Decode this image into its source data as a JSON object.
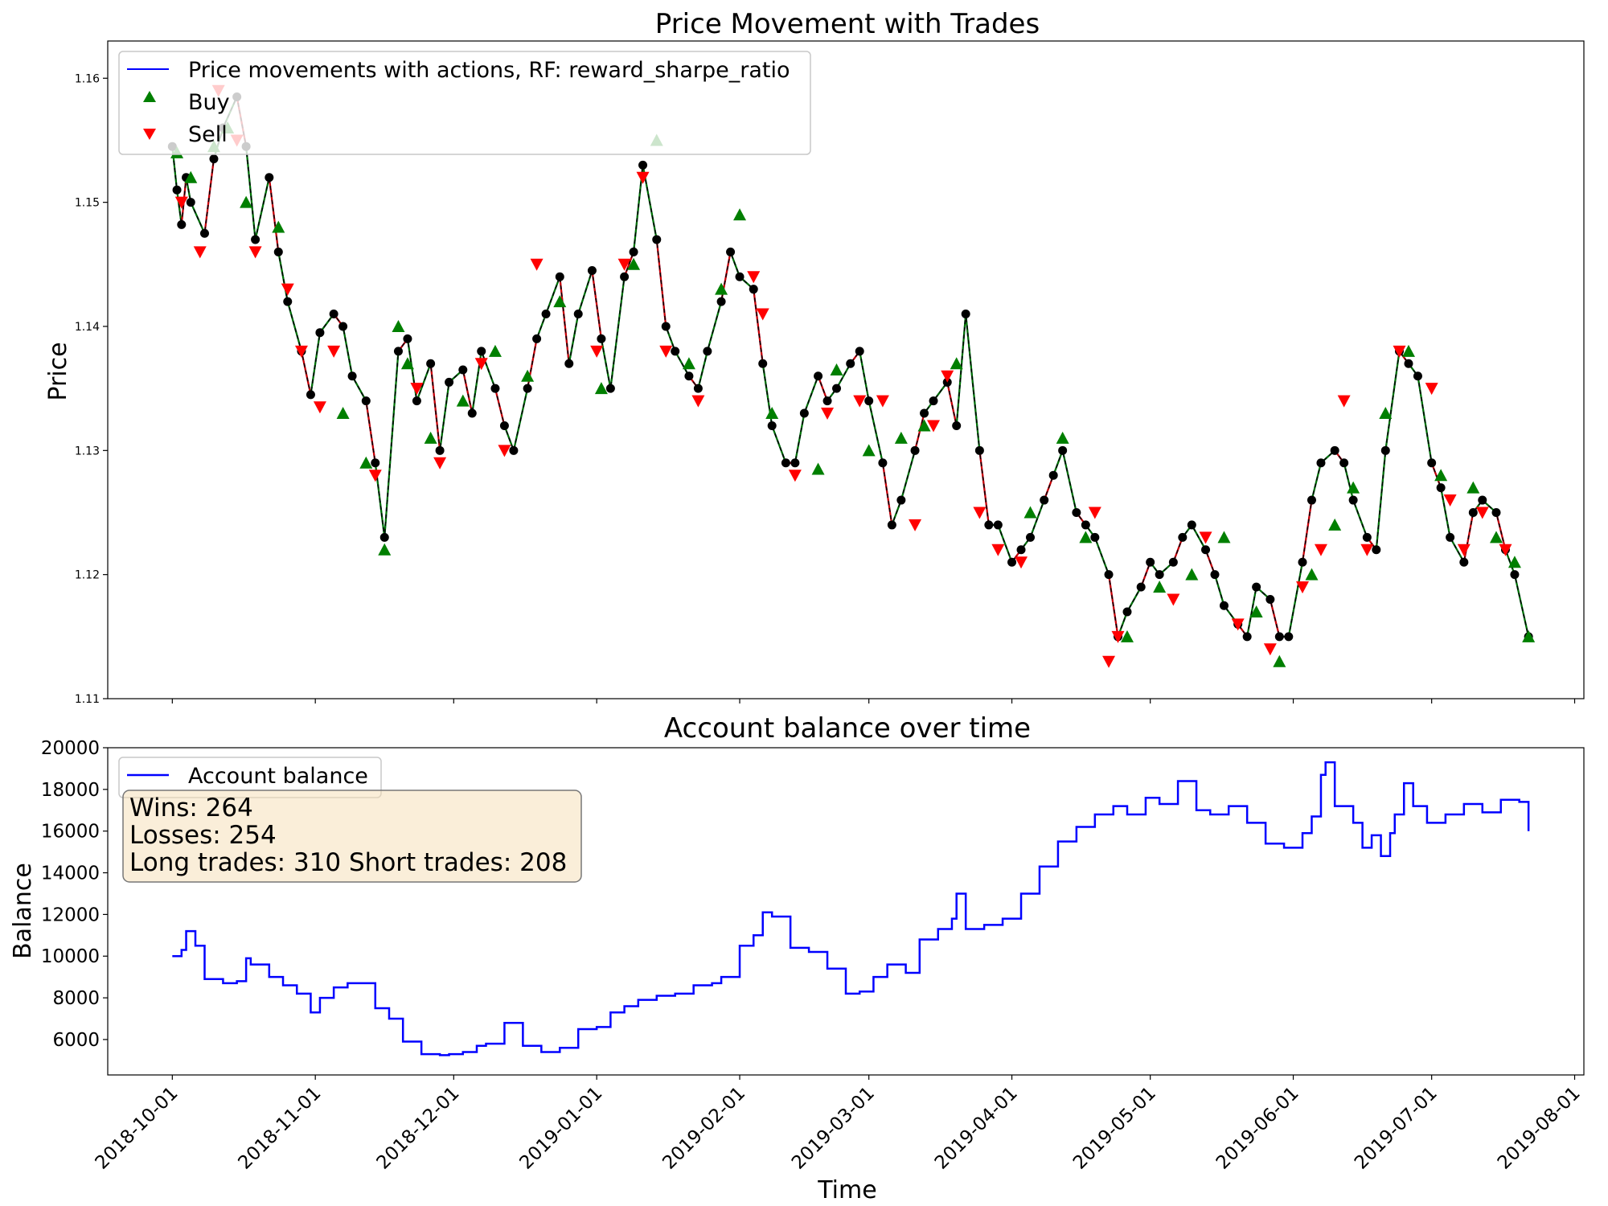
{
  "chart_data": [
    {
      "type": "line",
      "title": "Price Movement with Trades",
      "ylabel": "Price",
      "xlabel": "",
      "ylim": [
        1.11,
        1.163
      ],
      "xlim": [
        "2018-09-17",
        "2019-08-03"
      ],
      "yticks": [
        1.11,
        1.12,
        1.13,
        1.14,
        1.15,
        1.16
      ],
      "ytick_labels": [
        "1.11",
        "1.12",
        "1.13",
        "1.14",
        "1.15",
        "1.16"
      ],
      "legend": {
        "placement": "top-left",
        "entries": [
          "Price movements with actions, RF: reward_sharpe_ratio",
          "Buy",
          "Sell"
        ]
      },
      "colors": {
        "price": "#0000ff",
        "long_segment": "#007400",
        "short_segment": "#cc0000",
        "buy": "#007f00",
        "sell": "#ff0000",
        "close": "#000000"
      },
      "series": [
        {
          "name": "Price movements with actions, RF: reward_sharpe_ratio",
          "x": [
            "2018-10-01",
            "2018-10-02",
            "2018-10-03",
            "2018-10-04",
            "2018-10-05",
            "2018-10-08",
            "2018-10-10",
            "2018-10-12",
            "2018-10-15",
            "2018-10-17",
            "2018-10-19",
            "2018-10-22",
            "2018-10-24",
            "2018-10-26",
            "2018-10-29",
            "2018-10-31",
            "2018-11-02",
            "2018-11-05",
            "2018-11-07",
            "2018-11-09",
            "2018-11-12",
            "2018-11-14",
            "2018-11-16",
            "2018-11-19",
            "2018-11-21",
            "2018-11-23",
            "2018-11-26",
            "2018-11-28",
            "2018-11-30",
            "2018-12-03",
            "2018-12-05",
            "2018-12-07",
            "2018-12-10",
            "2018-12-12",
            "2018-12-14",
            "2018-12-17",
            "2018-12-19",
            "2018-12-21",
            "2018-12-24",
            "2018-12-26",
            "2018-12-28",
            "2018-12-31",
            "2019-01-02",
            "2019-01-04",
            "2019-01-07",
            "2019-01-09",
            "2019-01-11",
            "2019-01-14",
            "2019-01-16",
            "2019-01-18",
            "2019-01-21",
            "2019-01-23",
            "2019-01-25",
            "2019-01-28",
            "2019-01-30",
            "2019-02-01",
            "2019-02-04",
            "2019-02-06",
            "2019-02-08",
            "2019-02-11",
            "2019-02-13",
            "2019-02-15",
            "2019-02-18",
            "2019-02-20",
            "2019-02-22",
            "2019-02-25",
            "2019-02-27",
            "2019-03-01",
            "2019-03-04",
            "2019-03-06",
            "2019-03-08",
            "2019-03-11",
            "2019-03-13",
            "2019-03-15",
            "2019-03-18",
            "2019-03-20",
            "2019-03-22",
            "2019-03-25",
            "2019-03-27",
            "2019-03-29",
            "2019-04-01",
            "2019-04-03",
            "2019-04-05",
            "2019-04-08",
            "2019-04-10",
            "2019-04-12",
            "2019-04-15",
            "2019-04-17",
            "2019-04-19",
            "2019-04-22",
            "2019-04-24",
            "2019-04-26",
            "2019-04-29",
            "2019-05-01",
            "2019-05-03",
            "2019-05-06",
            "2019-05-08",
            "2019-05-10",
            "2019-05-13",
            "2019-05-15",
            "2019-05-17",
            "2019-05-20",
            "2019-05-22",
            "2019-05-24",
            "2019-05-27",
            "2019-05-29",
            "2019-05-31",
            "2019-06-03",
            "2019-06-05",
            "2019-06-07",
            "2019-06-10",
            "2019-06-12",
            "2019-06-14",
            "2019-06-17",
            "2019-06-19",
            "2019-06-21",
            "2019-06-24",
            "2019-06-26",
            "2019-06-28",
            "2019-07-01",
            "2019-07-03",
            "2019-07-05",
            "2019-07-08",
            "2019-07-10",
            "2019-07-12",
            "2019-07-15",
            "2019-07-17",
            "2019-07-19",
            "2019-07-22"
          ],
          "y": [
            1.1545,
            1.151,
            1.1482,
            1.152,
            1.15,
            1.1475,
            1.1535,
            1.156,
            1.1585,
            1.1545,
            1.147,
            1.152,
            1.146,
            1.142,
            1.138,
            1.1345,
            1.1395,
            1.141,
            1.14,
            1.136,
            1.134,
            1.129,
            1.123,
            1.138,
            1.139,
            1.134,
            1.137,
            1.13,
            1.1355,
            1.1365,
            1.133,
            1.138,
            1.135,
            1.132,
            1.13,
            1.135,
            1.139,
            1.141,
            1.144,
            1.137,
            1.141,
            1.1445,
            1.139,
            1.135,
            1.144,
            1.146,
            1.153,
            1.147,
            1.14,
            1.138,
            1.136,
            1.135,
            1.138,
            1.142,
            1.146,
            1.144,
            1.143,
            1.137,
            1.132,
            1.129,
            1.129,
            1.133,
            1.136,
            1.134,
            1.135,
            1.137,
            1.138,
            1.134,
            1.129,
            1.124,
            1.126,
            1.13,
            1.133,
            1.134,
            1.1355,
            1.132,
            1.141,
            1.13,
            1.124,
            1.124,
            1.121,
            1.122,
            1.123,
            1.126,
            1.128,
            1.13,
            1.125,
            1.124,
            1.123,
            1.12,
            1.115,
            1.117,
            1.119,
            1.121,
            1.12,
            1.121,
            1.123,
            1.124,
            1.122,
            1.12,
            1.1175,
            1.116,
            1.115,
            1.119,
            1.118,
            1.115,
            1.115,
            1.121,
            1.126,
            1.129,
            1.13,
            1.129,
            1.126,
            1.123,
            1.122,
            1.13,
            1.138,
            1.137,
            1.136,
            1.129,
            1.127,
            1.123,
            1.121,
            1.125,
            1.126,
            1.125,
            1.122,
            1.12,
            1.115
          ]
        }
      ],
      "buy_signals": {
        "x": [
          "2018-10-02",
          "2018-10-05",
          "2018-10-10",
          "2018-10-13",
          "2018-10-17",
          "2018-10-24",
          "2018-11-07",
          "2018-11-12",
          "2018-11-16",
          "2018-11-19",
          "2018-11-21",
          "2018-11-26",
          "2018-12-03",
          "2018-12-10",
          "2018-12-17",
          "2018-12-24",
          "2019-01-02",
          "2019-01-09",
          "2019-01-14",
          "2019-01-21",
          "2019-01-28",
          "2019-02-01",
          "2019-02-08",
          "2019-02-18",
          "2019-02-22",
          "2019-03-01",
          "2019-03-08",
          "2019-03-13",
          "2019-03-20",
          "2019-04-05",
          "2019-04-12",
          "2019-04-17",
          "2019-04-26",
          "2019-05-03",
          "2019-05-10",
          "2019-05-17",
          "2019-05-24",
          "2019-05-29",
          "2019-06-05",
          "2019-06-10",
          "2019-06-14",
          "2019-06-21",
          "2019-06-26",
          "2019-07-03",
          "2019-07-10",
          "2019-07-15",
          "2019-07-19",
          "2019-07-22"
        ],
        "y": [
          1.154,
          1.152,
          1.1545,
          1.156,
          1.15,
          1.148,
          1.133,
          1.129,
          1.122,
          1.14,
          1.137,
          1.131,
          1.134,
          1.138,
          1.136,
          1.142,
          1.135,
          1.145,
          1.155,
          1.137,
          1.143,
          1.149,
          1.133,
          1.1285,
          1.1365,
          1.13,
          1.131,
          1.132,
          1.137,
          1.125,
          1.131,
          1.123,
          1.115,
          1.119,
          1.12,
          1.123,
          1.117,
          1.113,
          1.12,
          1.124,
          1.127,
          1.133,
          1.138,
          1.128,
          1.127,
          1.123,
          1.121,
          1.115
        ]
      },
      "sell_signals": {
        "x": [
          "2018-10-03",
          "2018-10-07",
          "2018-10-11",
          "2018-10-15",
          "2018-10-19",
          "2018-10-26",
          "2018-10-29",
          "2018-11-02",
          "2018-11-05",
          "2018-11-14",
          "2018-11-23",
          "2018-11-28",
          "2018-12-07",
          "2018-12-12",
          "2018-12-19",
          "2019-01-01",
          "2019-01-07",
          "2019-01-11",
          "2019-01-16",
          "2019-01-23",
          "2019-02-04",
          "2019-02-06",
          "2019-02-13",
          "2019-02-20",
          "2019-02-27",
          "2019-03-04",
          "2019-03-11",
          "2019-03-15",
          "2019-03-18",
          "2019-03-25",
          "2019-03-29",
          "2019-04-03",
          "2019-04-19",
          "2019-04-22",
          "2019-04-24",
          "2019-05-06",
          "2019-05-13",
          "2019-05-20",
          "2019-05-27",
          "2019-06-03",
          "2019-06-07",
          "2019-06-12",
          "2019-06-17",
          "2019-06-24",
          "2019-07-01",
          "2019-07-05",
          "2019-07-08",
          "2019-07-12",
          "2019-07-17"
        ],
        "y": [
          1.15,
          1.146,
          1.159,
          1.155,
          1.146,
          1.143,
          1.138,
          1.1335,
          1.138,
          1.128,
          1.135,
          1.129,
          1.137,
          1.13,
          1.145,
          1.138,
          1.145,
          1.152,
          1.138,
          1.134,
          1.144,
          1.141,
          1.128,
          1.133,
          1.134,
          1.134,
          1.124,
          1.132,
          1.136,
          1.125,
          1.122,
          1.121,
          1.125,
          1.113,
          1.115,
          1.118,
          1.123,
          1.116,
          1.114,
          1.119,
          1.122,
          1.134,
          1.122,
          1.138,
          1.135,
          1.126,
          1.122,
          1.125,
          1.122
        ]
      }
    },
    {
      "type": "line",
      "title": "Account balance over time",
      "xlabel": "Time",
      "ylabel": "Balance",
      "ylim": [
        4300,
        20000
      ],
      "xlim": [
        "2018-09-17",
        "2019-08-03"
      ],
      "yticks": [
        6000,
        8000,
        10000,
        12000,
        14000,
        16000,
        18000,
        20000
      ],
      "ytick_labels": [
        "6000",
        "8000",
        "10000",
        "12000",
        "14000",
        "16000",
        "18000",
        "20000"
      ],
      "xticks": [
        "2018-10-01",
        "2018-11-01",
        "2018-12-01",
        "2019-01-01",
        "2019-02-01",
        "2019-03-01",
        "2019-04-01",
        "2019-05-01",
        "2019-06-01",
        "2019-07-01",
        "2019-08-01"
      ],
      "xtick_labels": [
        "2018-10-01",
        "2018-11-01",
        "2018-12-01",
        "2019-01-01",
        "2019-02-01",
        "2019-03-01",
        "2019-04-01",
        "2019-05-01",
        "2019-06-01",
        "2019-07-01",
        "2019-08-01"
      ],
      "legend": {
        "placement": "top-left",
        "entries": [
          "Account balance"
        ]
      },
      "colors": {
        "balance": "#0000ff"
      },
      "stats_box": {
        "wins": "Wins: 264",
        "losses": "Losses: 254",
        "trades": "Long trades: 310 Short trades: 208"
      },
      "series": [
        {
          "name": "Account balance",
          "x": [
            "2018-10-01",
            "2018-10-03",
            "2018-10-04",
            "2018-10-06",
            "2018-10-08",
            "2018-10-12",
            "2018-10-15",
            "2018-10-17",
            "2018-10-18",
            "2018-10-22",
            "2018-10-25",
            "2018-10-28",
            "2018-10-31",
            "2018-11-02",
            "2018-11-05",
            "2018-11-08",
            "2018-11-11",
            "2018-11-14",
            "2018-11-17",
            "2018-11-20",
            "2018-11-24",
            "2018-11-28",
            "2018-11-30",
            "2018-12-03",
            "2018-12-06",
            "2018-12-08",
            "2018-12-12",
            "2018-12-16",
            "2018-12-20",
            "2018-12-24",
            "2018-12-28",
            "2019-01-01",
            "2019-01-04",
            "2019-01-07",
            "2019-01-10",
            "2019-01-14",
            "2019-01-18",
            "2019-01-22",
            "2019-01-26",
            "2019-01-28",
            "2019-02-01",
            "2019-02-04",
            "2019-02-06",
            "2019-02-08",
            "2019-02-12",
            "2019-02-16",
            "2019-02-20",
            "2019-02-24",
            "2019-02-27",
            "2019-03-02",
            "2019-03-05",
            "2019-03-09",
            "2019-03-12",
            "2019-03-16",
            "2019-03-19",
            "2019-03-20",
            "2019-03-22",
            "2019-03-26",
            "2019-03-30",
            "2019-04-03",
            "2019-04-07",
            "2019-04-11",
            "2019-04-15",
            "2019-04-19",
            "2019-04-23",
            "2019-04-26",
            "2019-04-30",
            "2019-05-03",
            "2019-05-07",
            "2019-05-11",
            "2019-05-14",
            "2019-05-18",
            "2019-05-22",
            "2019-05-26",
            "2019-05-30",
            "2019-06-03",
            "2019-06-05",
            "2019-06-07",
            "2019-06-08",
            "2019-06-10",
            "2019-06-14",
            "2019-06-16",
            "2019-06-18",
            "2019-06-20",
            "2019-06-22",
            "2019-06-23",
            "2019-06-25",
            "2019-06-27",
            "2019-06-30",
            "2019-07-04",
            "2019-07-08",
            "2019-07-12",
            "2019-07-16",
            "2019-07-20",
            "2019-07-22"
          ],
          "y": [
            10000,
            10300,
            11200,
            10500,
            8900,
            8700,
            8800,
            9900,
            9600,
            9000,
            8600,
            8200,
            7300,
            8000,
            8500,
            8700,
            8700,
            7500,
            7000,
            5900,
            5300,
            5250,
            5300,
            5400,
            5700,
            5800,
            6800,
            5700,
            5400,
            5600,
            6500,
            6600,
            7300,
            7600,
            7900,
            8100,
            8200,
            8600,
            8700,
            9000,
            10500,
            11000,
            12100,
            11900,
            10400,
            10200,
            9400,
            8200,
            8300,
            9000,
            9600,
            9200,
            10800,
            11300,
            11800,
            13000,
            11300,
            11500,
            11800,
            13000,
            14300,
            15500,
            16200,
            16800,
            17200,
            16800,
            17600,
            17300,
            18400,
            17000,
            16800,
            17200,
            16400,
            15400,
            15200,
            15900,
            16700,
            18700,
            19300,
            17200,
            16400,
            15200,
            15800,
            14800,
            15900,
            16800,
            18300,
            17200,
            16400,
            16800,
            17300,
            16900,
            17500,
            17400,
            16000
          ]
        }
      ]
    }
  ]
}
